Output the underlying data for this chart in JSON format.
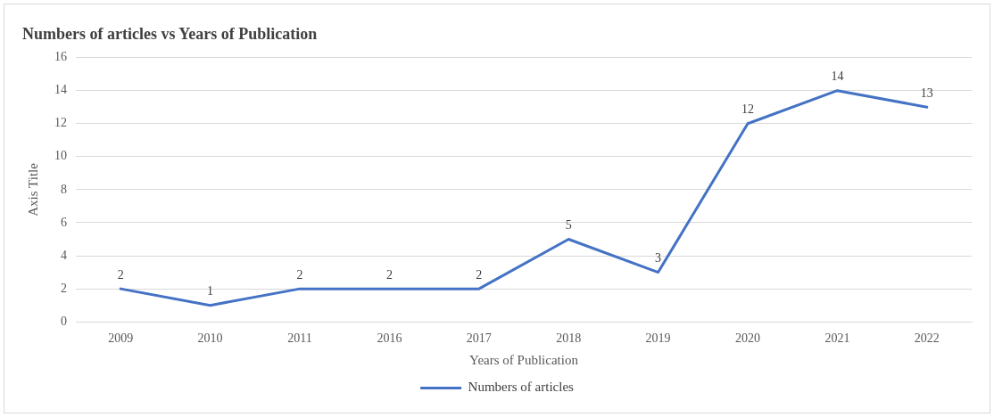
{
  "chart_data": {
    "type": "line",
    "title": "Numbers of articles vs Years of Publication",
    "xlabel": "Years of Publication",
    "ylabel": "Axis Title",
    "categories": [
      "2009",
      "2010",
      "2011",
      "2016",
      "2017",
      "2018",
      "2019",
      "2020",
      "2021",
      "2022"
    ],
    "series": [
      {
        "name": "Numbers of articles",
        "color": "#4472c4",
        "values": [
          2,
          1,
          2,
          2,
          2,
          5,
          3,
          12,
          14,
          13
        ]
      }
    ],
    "ylim": [
      0,
      16
    ],
    "yticks": [
      0,
      2,
      4,
      6,
      8,
      10,
      12,
      14,
      16
    ],
    "grid": "y",
    "legend": "bottom",
    "data_labels": true,
    "marker": "none",
    "line_style": "solid"
  }
}
